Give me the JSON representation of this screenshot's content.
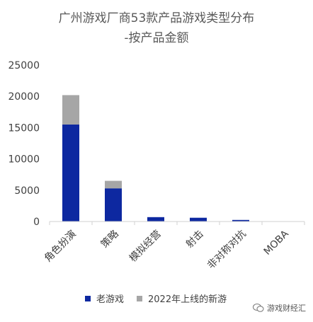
{
  "title_line1": "广州游戏厂商53款产品游戏类型分布",
  "title_line2": "-按产品金额",
  "watermark": "游戏财经汇",
  "colors": {
    "old": "#0d28a0",
    "new": "#a6a6a6",
    "axis": "#d0d0d0",
    "tick": "#404040"
  },
  "chart_data": {
    "type": "bar",
    "stacked": true,
    "categories": [
      "角色扮演",
      "策略",
      "模拟经营",
      "射击",
      "非对称对抗",
      "MOBA"
    ],
    "series": [
      {
        "name": "老游戏",
        "values": [
          15500,
          5300,
          700,
          600,
          250,
          0
        ]
      },
      {
        "name": "2022年上线的新游",
        "values": [
          4700,
          1200,
          0,
          0,
          0,
          0
        ]
      }
    ],
    "ylim": [
      0,
      25000
    ],
    "yticks": [
      0,
      5000,
      10000,
      15000,
      20000,
      25000
    ],
    "grid": false,
    "legend_position": "bottom"
  }
}
